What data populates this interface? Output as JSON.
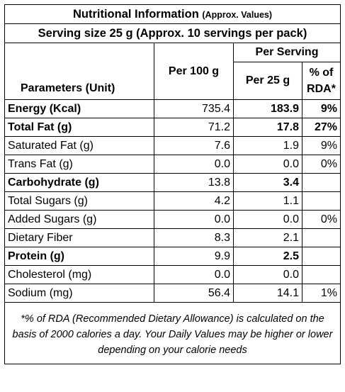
{
  "title": {
    "main": "Nutritional Information",
    "sub": "(Approx. Values)"
  },
  "serving_line": "Serving size 25 g (Approx. 10 servings per pack)",
  "headers": {
    "parameters": "Parameters (Unit)",
    "per100": "Per 100 g",
    "per_serving": "Per Serving",
    "per25": "Per 25 g",
    "rda_line1": "% of",
    "rda_line2": "RDA*"
  },
  "rows": [
    {
      "name": "Energy (Kcal)",
      "per100": "735.4",
      "per25": "183.9",
      "rda": "9%",
      "bold": true
    },
    {
      "name": "Total Fat (g)",
      "per100": "71.2",
      "per25": "17.8",
      "rda": "27%",
      "bold": true
    },
    {
      "name": "Saturated Fat (g)",
      "per100": "7.6",
      "per25": "1.9",
      "rda": "9%",
      "bold": false
    },
    {
      "name": "Trans Fat (g)",
      "per100": "0.0",
      "per25": "0.0",
      "rda": "0%",
      "bold": false
    },
    {
      "name": "Carbohydrate (g)",
      "per100": "13.8",
      "per25": "3.4",
      "rda": "",
      "bold": true
    },
    {
      "name": "Total Sugars (g)",
      "per100": "4.2",
      "per25": "1.1",
      "rda": "",
      "bold": false
    },
    {
      "name": "Added Sugars (g)",
      "per100": "0.0",
      "per25": "0.0",
      "rda": "0%",
      "bold": false
    },
    {
      "name": "Dietary Fiber",
      "per100": "8.3",
      "per25": "2.1",
      "rda": "",
      "bold": false
    },
    {
      "name": "Protein (g)",
      "per100": "9.9",
      "per25": "2.5",
      "rda": "",
      "bold": true
    },
    {
      "name": "Cholesterol (mg)",
      "per100": "0.0",
      "per25": "0.0",
      "rda": "",
      "bold": false
    },
    {
      "name": "Sodium (mg)",
      "per100": "56.4",
      "per25": "14.1",
      "rda": "1%",
      "bold": false
    }
  ],
  "footnote": "*% of RDA (Recommended Dietary Allowance) is calculated on the basis of 2000 calories a day. Your Daily Values may be higher or lower depending on your calorie needs"
}
